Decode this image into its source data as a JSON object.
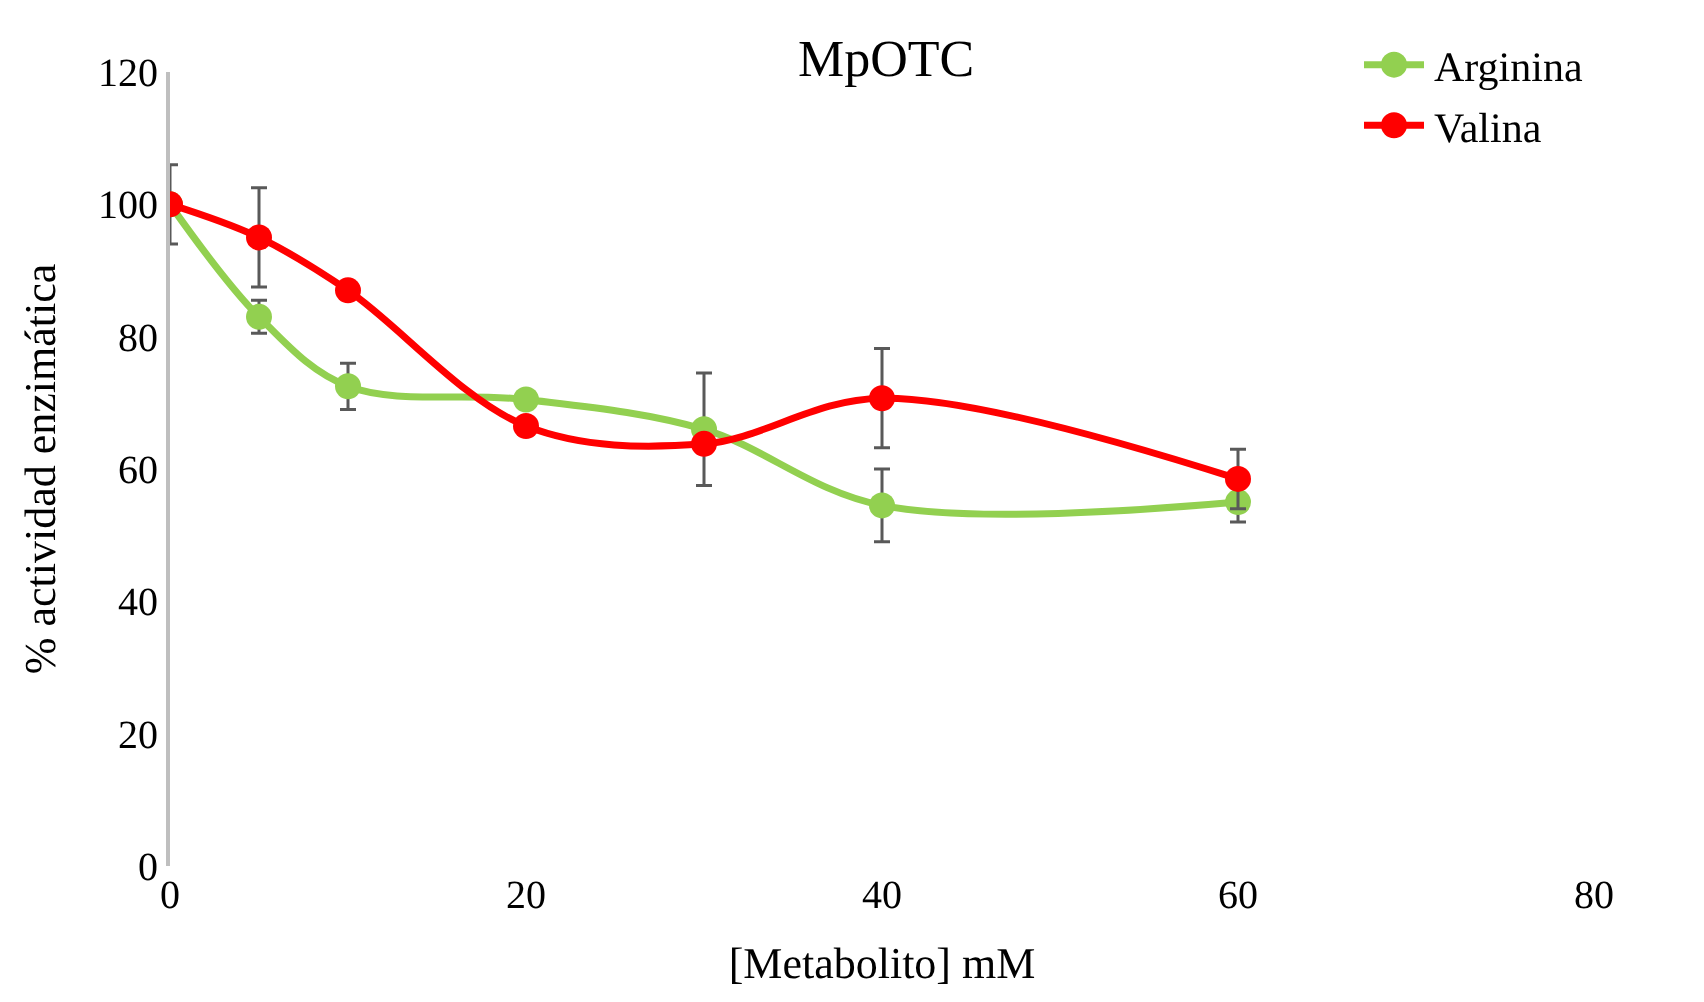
{
  "chart_data": {
    "type": "line",
    "title": "MpOTC",
    "xlabel": "[Metabolito] mM",
    "ylabel": "% actividad enzimática",
    "x": [
      0,
      5,
      10,
      20,
      30,
      40,
      60
    ],
    "series": [
      {
        "name": "Arginina",
        "color": "#92d050",
        "values": [
          100,
          83,
          72.5,
          70.5,
          66,
          54.5,
          55
        ],
        "errors": [
          null,
          2.5,
          3.5,
          null,
          8.5,
          5.5,
          3
        ]
      },
      {
        "name": "Valina",
        "color": "#ff0000",
        "values": [
          100,
          95,
          87,
          66.5,
          63.8,
          70.7,
          58.5
        ],
        "errors": [
          6,
          7.5,
          null,
          null,
          null,
          7.5,
          4.5
        ]
      }
    ],
    "xlim": [
      0,
      80
    ],
    "xticks": [
      0,
      20,
      40,
      60,
      80
    ],
    "ylim": [
      0,
      120
    ],
    "yticks": [
      0,
      20,
      40,
      60,
      80,
      100,
      120
    ],
    "legend": "top right",
    "marker": "circle",
    "line_style": "solid"
  }
}
